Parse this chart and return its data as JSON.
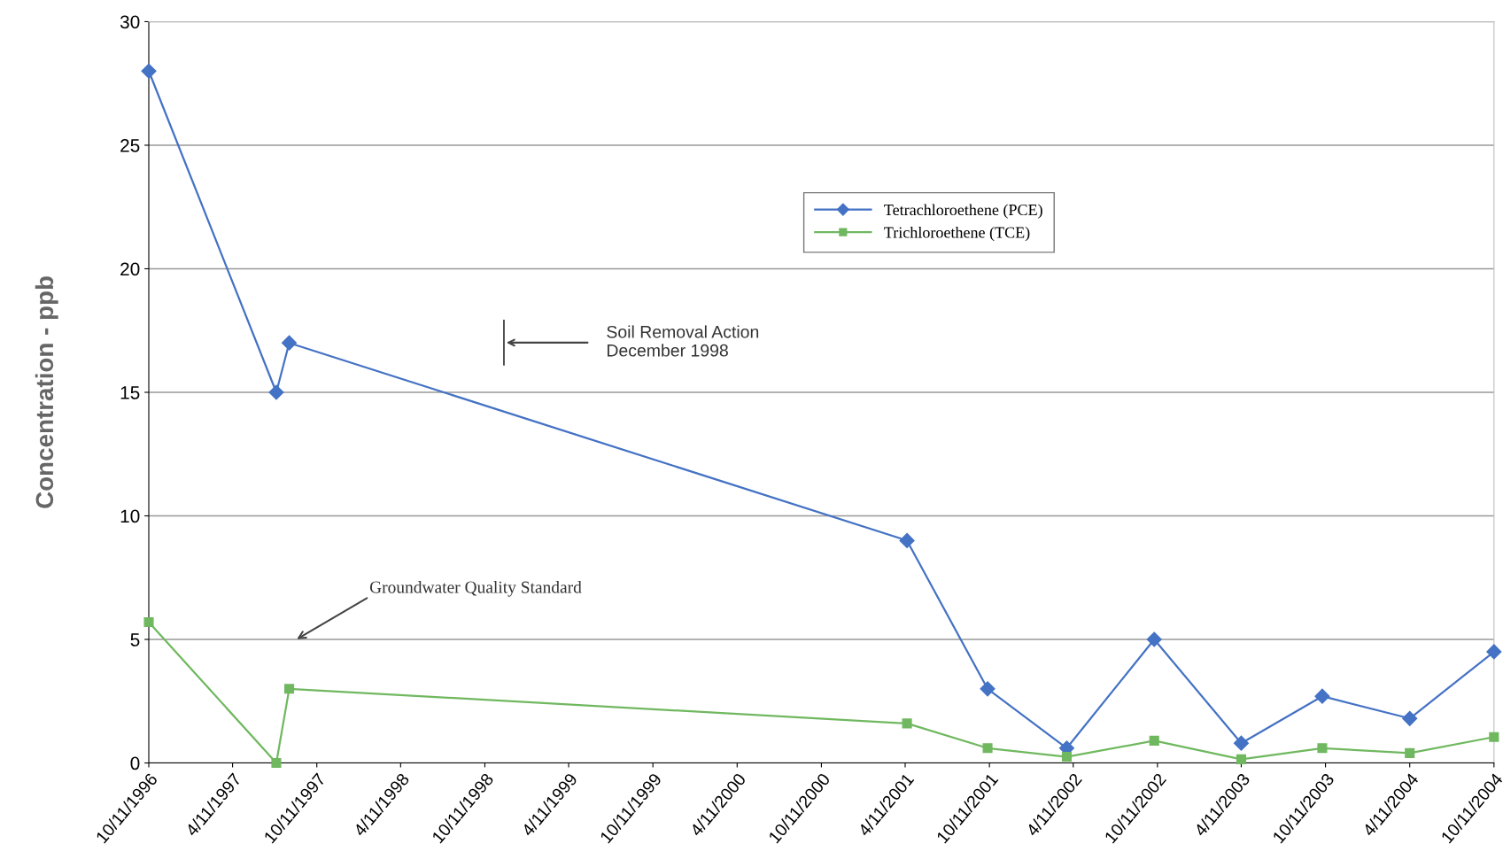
{
  "chart_data": {
    "type": "line",
    "ylabel": "Concentration - ppb",
    "x": [
      "1996-10-11",
      "1997-07-15",
      "1997-08-12",
      "2001-04-15",
      "2001-10-07",
      "2002-03-28",
      "2002-10-04",
      "2003-04-11",
      "2003-10-04",
      "2004-04-11",
      "2004-10-11"
    ],
    "series": [
      {
        "name": "Tetrachloroethene (PCE)",
        "color": "#4472c4",
        "marker": "diamond",
        "values": [
          28,
          15,
          17,
          9,
          3,
          0.6,
          5,
          0.8,
          2.7,
          1.8,
          4.5
        ]
      },
      {
        "name": "Trichloroethene (TCE)",
        "color": "#70b860",
        "marker": "square",
        "values": [
          5.7,
          0,
          3,
          1.6,
          0.6,
          0.25,
          0.9,
          0.15,
          0.6,
          0.4,
          1.05
        ]
      }
    ],
    "xlim": [
      "1996-10-11",
      "2004-10-11"
    ],
    "xticks": [
      {
        "value": "1996-10-11",
        "label": "10/11/1996"
      },
      {
        "value": "1997-04-11",
        "label": "4/11/1997"
      },
      {
        "value": "1997-10-11",
        "label": "10/11/1997"
      },
      {
        "value": "1998-04-11",
        "label": "4/11/1998"
      },
      {
        "value": "1998-10-11",
        "label": "10/11/1998"
      },
      {
        "value": "1999-04-11",
        "label": "4/11/1999"
      },
      {
        "value": "1999-10-11",
        "label": "10/11/1999"
      },
      {
        "value": "2000-04-11",
        "label": "4/11/2000"
      },
      {
        "value": "2000-10-11",
        "label": "10/11/2000"
      },
      {
        "value": "2001-04-11",
        "label": "4/11/2001"
      },
      {
        "value": "2001-10-11",
        "label": "10/11/2001"
      },
      {
        "value": "2002-04-11",
        "label": "4/11/2002"
      },
      {
        "value": "2002-10-11",
        "label": "10/11/2002"
      },
      {
        "value": "2003-04-11",
        "label": "4/11/2003"
      },
      {
        "value": "2003-10-11",
        "label": "10/11/2003"
      },
      {
        "value": "2004-04-11",
        "label": "4/11/2004"
      },
      {
        "value": "2004-10-11",
        "label": "10/11/2004"
      }
    ],
    "ylim": [
      0,
      30
    ],
    "yticks": [
      0,
      5,
      10,
      15,
      20,
      25,
      30
    ],
    "grid": "y",
    "legend": "top",
    "line_style": "solid",
    "annotations": [
      "Soil Removal Action\nDecember 1998",
      "Groundwater Quality Standard"
    ]
  }
}
